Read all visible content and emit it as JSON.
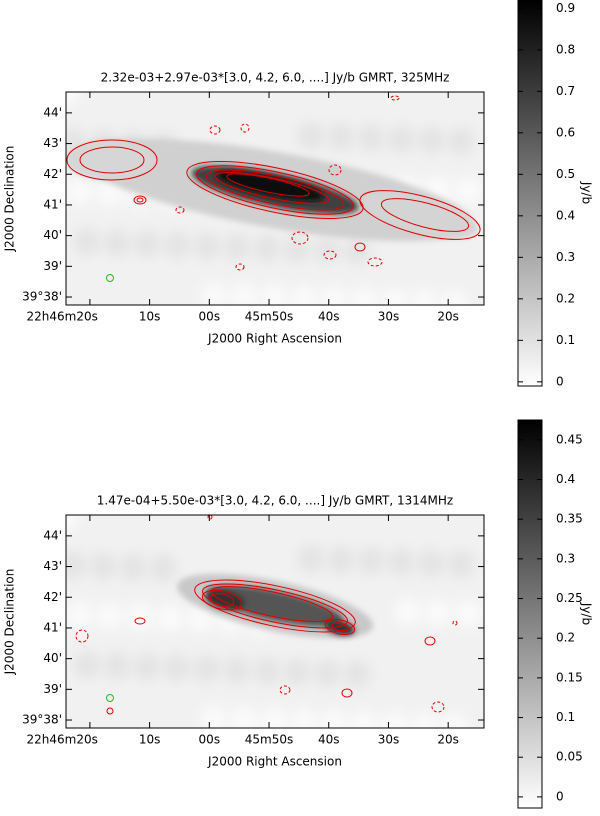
{
  "chart_data": [
    {
      "type": "image",
      "title": "2.32e-03+2.97e-03*[3.0, 4.2, 6.0, ....] Jy/b GMRT, 325MHz",
      "xlabel": "J2000 Right Ascension",
      "ylabel": "J2000 Declination",
      "xlim": [
        2784,
        2714
      ],
      "xticks": [
        {
          "value": 2780,
          "label": "22h46m20s"
        },
        {
          "value": 2770,
          "label": "10s"
        },
        {
          "value": 2760,
          "label": "00s"
        },
        {
          "value": 2750,
          "label": "45m50s"
        },
        {
          "value": 2740,
          "label": "40s"
        },
        {
          "value": 2730,
          "label": "30s"
        },
        {
          "value": 2720,
          "label": "20s"
        }
      ],
      "ylim": [
        37.74,
        44.68
      ],
      "yticks": [
        {
          "value": 38,
          "label": "39°38'"
        },
        {
          "value": 39,
          "label": "39'"
        },
        {
          "value": 40,
          "label": "40'"
        },
        {
          "value": 41,
          "label": "41'"
        },
        {
          "value": 42,
          "label": "42'"
        },
        {
          "value": 43,
          "label": "43'"
        },
        {
          "value": 44,
          "label": "44'"
        }
      ],
      "contour_color": "#e00000",
      "beam_color": "#22bb22",
      "colorbar": {
        "label": "Jy/b",
        "lim": [
          -0.01,
          0.92
        ],
        "ticks": [
          0,
          0.1,
          0.2,
          0.3,
          0.4,
          0.5,
          0.6,
          0.7,
          0.8,
          0.9
        ]
      }
    },
    {
      "type": "image",
      "title": "1.47e-04+5.50e-03*[3.0, 4.2, 6.0, ....] Jy/b GMRT, 1314MHz",
      "xlabel": "J2000 Right Ascension",
      "ylabel": "J2000 Declination",
      "xlim": [
        2784,
        2714
      ],
      "xticks": [
        {
          "value": 2780,
          "label": "22h46m20s"
        },
        {
          "value": 2770,
          "label": "10s"
        },
        {
          "value": 2760,
          "label": "00s"
        },
        {
          "value": 2750,
          "label": "45m50s"
        },
        {
          "value": 2740,
          "label": "40s"
        },
        {
          "value": 2730,
          "label": "30s"
        },
        {
          "value": 2720,
          "label": "20s"
        }
      ],
      "ylim": [
        37.74,
        44.68
      ],
      "yticks": [
        {
          "value": 38,
          "label": "39°38'"
        },
        {
          "value": 39,
          "label": "39'"
        },
        {
          "value": 40,
          "label": "40'"
        },
        {
          "value": 41,
          "label": "41'"
        },
        {
          "value": 42,
          "label": "42'"
        },
        {
          "value": 43,
          "label": "43'"
        },
        {
          "value": 44,
          "label": "44'"
        }
      ],
      "contour_color": "#e00000",
      "beam_color": "#22bb22",
      "colorbar": {
        "label": "Jy/b",
        "lim": [
          -0.014,
          0.475
        ],
        "ticks": [
          0,
          0.05,
          0.1,
          0.15,
          0.2,
          0.25,
          0.3,
          0.35,
          0.4,
          0.45
        ]
      }
    }
  ]
}
